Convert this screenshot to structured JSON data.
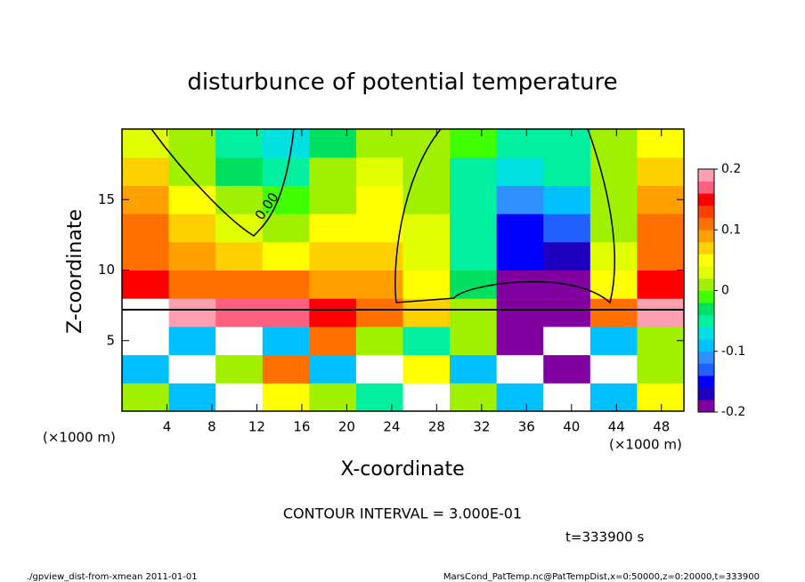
{
  "chart_data": {
    "type": "heatmap",
    "title": "disturbunce of potential temperature",
    "xlabel": "X-coordinate",
    "ylabel": "Z-coordinate",
    "x_unit": "(×1000 m)",
    "y_unit": "(×1000 m)",
    "xlim": [
      0,
      50
    ],
    "xticks": [
      4,
      8,
      12,
      16,
      20,
      24,
      28,
      32,
      36,
      40,
      44,
      48
    ],
    "ylim": [
      0,
      20
    ],
    "yticks": [
      5,
      10,
      15
    ],
    "clim": [
      -0.2,
      0.2
    ],
    "cticks": [
      -0.2,
      -0.1,
      0,
      0.1,
      0.2
    ],
    "colorscale": [
      "#8000a0",
      "#2000c0",
      "#0000ff",
      "#2060ff",
      "#3090ff",
      "#00c0ff",
      "#00e0e0",
      "#00f0a0",
      "#00e060",
      "#40ff00",
      "#a0f000",
      "#e0ff00",
      "#ffff00",
      "#ffd000",
      "#ffa000",
      "#ff7000",
      "#ff4000",
      "#ff0000",
      "#ff6080",
      "#ffa0b0"
    ],
    "z": [
      [
        0.0,
        -0.1,
        0.2,
        0.05,
        0.0,
        -0.05,
        0.2,
        0.0,
        -0.1,
        0.2,
        -0.1,
        0.05
      ],
      [
        -0.1,
        0.2,
        0.0,
        0.1,
        -0.1,
        0.2,
        0.05,
        -0.1,
        0.2,
        -0.2,
        0.2,
        0.0
      ],
      [
        0.2,
        -0.1,
        0.2,
        -0.1,
        0.1,
        0.0,
        -0.05,
        0.0,
        -0.2,
        0.2,
        -0.1,
        0.0
      ],
      [
        0.2,
        0.18,
        0.17,
        0.17,
        0.15,
        0.12,
        0.06,
        0.0,
        -0.2,
        -0.2,
        0.1,
        0.18
      ],
      [
        0.15,
        0.12,
        0.1,
        0.1,
        0.09,
        0.08,
        0.04,
        -0.03,
        -0.2,
        -0.2,
        0.05,
        0.14
      ],
      [
        0.12,
        0.09,
        0.06,
        0.05,
        0.06,
        0.06,
        0.03,
        -0.05,
        -0.16,
        -0.17,
        0.03,
        0.12
      ],
      [
        0.1,
        0.06,
        0.03,
        0.0,
        0.04,
        0.05,
        0.03,
        -0.06,
        -0.15,
        -0.14,
        0.02,
        0.1
      ],
      [
        0.08,
        0.04,
        0.0,
        -0.02,
        0.02,
        0.04,
        0.02,
        -0.06,
        -0.12,
        -0.1,
        0.0,
        0.08
      ],
      [
        0.06,
        0.02,
        -0.03,
        -0.05,
        0.0,
        0.03,
        0.02,
        -0.04,
        -0.08,
        -0.06,
        0.0,
        0.06
      ],
      [
        0.03,
        0.0,
        -0.06,
        -0.08,
        -0.03,
        0.02,
        0.0,
        -0.02,
        -0.05,
        -0.04,
        0.0,
        0.04
      ]
    ],
    "contour_label": "0.00",
    "contour_interval": "CONTOUR INTERVAL = 3.000E-01",
    "time": "t=333900 s",
    "footer_left": "./gpview_dist-from-xmean  2011-01-01",
    "footer_right": "MarsCond_PatTemp.nc@PatTempDist,x=0:50000,z=0:20000,t=333900"
  }
}
